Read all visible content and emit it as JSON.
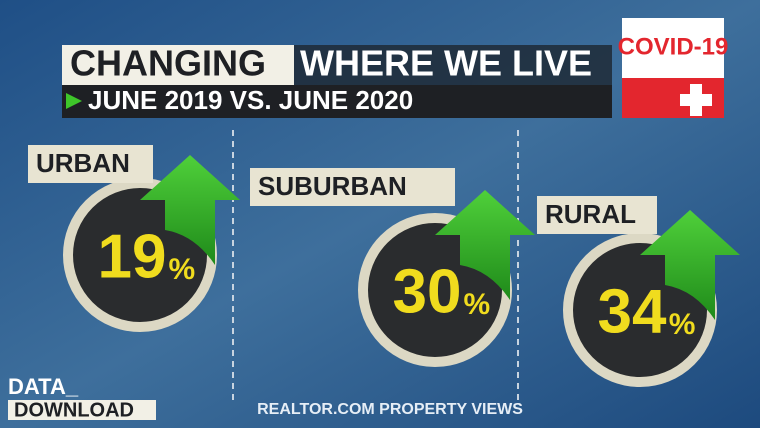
{
  "header": {
    "title_highlight": "CHANGING",
    "title_rest": "WHERE WE LIVE",
    "subtitle": "JUNE 2019 VS. JUNE 2020",
    "badge": "COVID-19"
  },
  "panels": [
    {
      "label": "URBAN",
      "value": 19,
      "unit": "%"
    },
    {
      "label": "SUBURBAN",
      "value": 30,
      "unit": "%"
    },
    {
      "label": "RURAL",
      "value": 34,
      "unit": "%"
    }
  ],
  "footer": {
    "brand_top": "DATA_",
    "brand_bottom": "DOWNLOAD",
    "source": "REALTOR.COM PROPERTY VIEWS"
  }
}
